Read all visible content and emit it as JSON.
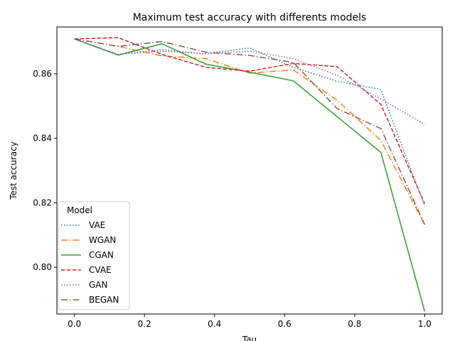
{
  "chart_data": {
    "type": "line",
    "title": "Maximum test accuracy with differents models",
    "xlabel": "Tau",
    "ylabel": "Test accuracy",
    "xlim": [
      -0.05,
      1.05
    ],
    "ylim": [
      0.7855,
      0.8745
    ],
    "xticks": [
      0.0,
      0.2,
      0.4,
      0.6,
      0.8,
      1.0
    ],
    "xtick_labels": [
      "0.0",
      "0.2",
      "0.4",
      "0.6",
      "0.8",
      "1.0"
    ],
    "yticks": [
      0.8,
      0.82,
      0.84,
      0.86
    ],
    "ytick_labels": [
      "0.80",
      "0.82",
      "0.84",
      "0.86"
    ],
    "grid": false,
    "legend": {
      "title": "Model",
      "placement": "lower-left"
    },
    "x": [
      0.0,
      0.125,
      0.25,
      0.375,
      0.5,
      0.625,
      0.75,
      0.875,
      1.0
    ],
    "series": [
      {
        "name": "VAE",
        "color": "#1f77b4",
        "dash": "dotted",
        "values": [
          0.8708,
          0.866,
          0.867,
          0.8662,
          0.868,
          0.862,
          0.8577,
          0.8551,
          0.819
        ]
      },
      {
        "name": "WGAN",
        "color": "#ff7f0e",
        "dash": "dashdot",
        "values": [
          0.8708,
          0.8685,
          0.8655,
          0.8647,
          0.8602,
          0.8612,
          0.8518,
          0.8393,
          0.8132
        ]
      },
      {
        "name": "CGAN",
        "color": "#2ca02c",
        "dash": "solid",
        "values": [
          0.8708,
          0.8658,
          0.8693,
          0.863,
          0.8605,
          0.8578,
          0.8467,
          0.8356,
          0.7863
        ]
      },
      {
        "name": "CVAE",
        "color": "#d62728",
        "dash": "dashed",
        "values": [
          0.8708,
          0.8712,
          0.866,
          0.862,
          0.8608,
          0.8632,
          0.8622,
          0.8505,
          0.8197
        ]
      },
      {
        "name": "GAN",
        "color": "#9467bd",
        "dash": "dotted",
        "values": [
          0.8708,
          0.866,
          0.8675,
          0.8662,
          0.867,
          0.8647,
          0.8595,
          0.8522,
          0.8443
        ]
      },
      {
        "name": "BEGAN",
        "color": "#8c564b",
        "dash": "dashdot",
        "values": [
          0.8708,
          0.8685,
          0.87,
          0.8667,
          0.8657,
          0.8635,
          0.8492,
          0.843,
          0.8132
        ]
      }
    ]
  }
}
